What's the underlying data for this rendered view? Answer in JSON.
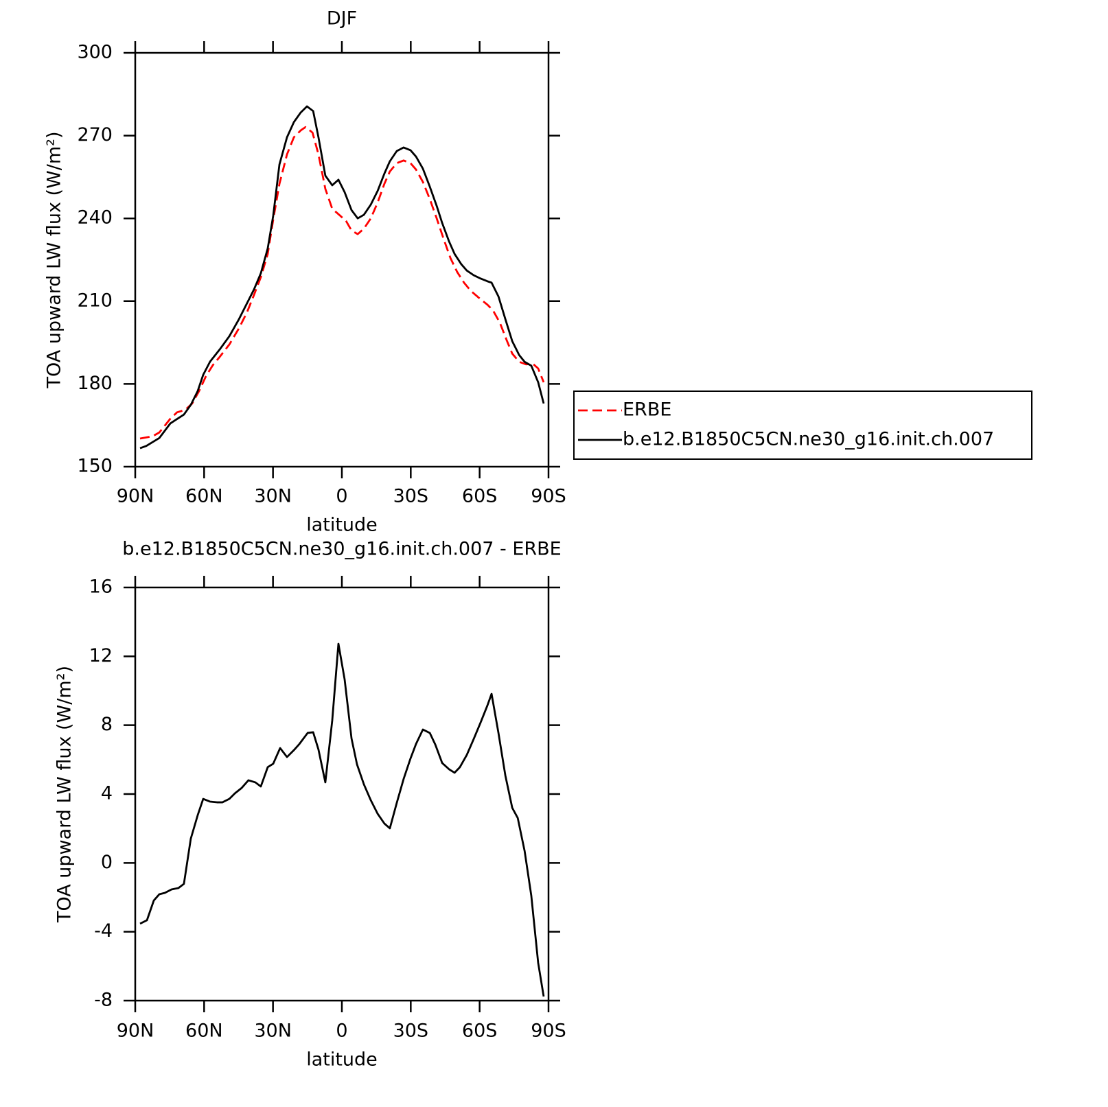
{
  "chart_data": [
    {
      "type": "line",
      "title": "DJF",
      "xlabel": "latitude",
      "ylabel": "TOA upward LW flux (W/m²)",
      "xlim": [
        90,
        -90
      ],
      "xticks": [
        {
          "value": 90,
          "label": "90N"
        },
        {
          "value": 60,
          "label": "60N"
        },
        {
          "value": 30,
          "label": "30N"
        },
        0,
        {
          "value": -30,
          "label": "30S"
        },
        {
          "value": -60,
          "label": "60S"
        },
        {
          "value": -90,
          "label": "90S"
        }
      ],
      "ylim": [
        150,
        300
      ],
      "yticks": [
        150,
        180,
        210,
        240,
        270,
        300
      ],
      "legend": "right",
      "series": [
        {
          "name": "ERBE",
          "color": "#ff0000",
          "line_style": "dashed",
          "x": [
            87.9,
            82.5,
            79.5,
            74.7,
            71.8,
            68.2,
            65.2,
            62.2,
            59.2,
            56.2,
            53.2,
            49,
            44.8,
            41.3,
            38.3,
            35.3,
            32.3,
            29.9,
            27.2,
            23.9,
            20.9,
            17.9,
            15.8,
            12.8,
            10.2,
            7.2,
            4.2,
            1.2,
            -1.8,
            -4.2,
            -6.9,
            -9.6,
            -12.6,
            -15.6,
            -18.5,
            -20.9,
            -23.9,
            -26.9,
            -29.9,
            -32.3,
            -35.3,
            -38.3,
            -41.3,
            -44.3,
            -47.3,
            -50.2,
            -53.2,
            -56.2,
            -60.4,
            -63.4,
            -65.8,
            -68.8,
            -71.8,
            -74.2,
            -77.2,
            -80.2,
            -83.2,
            -85.5,
            -87.9
          ],
          "values": [
            160.2,
            161,
            162.4,
            167.4,
            169.7,
            170.6,
            172.9,
            177.4,
            182.8,
            186.8,
            189.8,
            194.3,
            200.2,
            206,
            212.2,
            218.7,
            227.1,
            239.6,
            252.5,
            263.2,
            269.4,
            271.9,
            273.1,
            271.1,
            263.2,
            250.7,
            243.5,
            241.3,
            239.1,
            235.6,
            234.3,
            236.3,
            240,
            245.8,
            252.5,
            257,
            260,
            261,
            260,
            257.7,
            253.2,
            247,
            240,
            232.6,
            225.6,
            220.6,
            216.7,
            213.7,
            210.7,
            208.7,
            206.7,
            202.2,
            195.8,
            191,
            188,
            187.1,
            187.3,
            185.6,
            180.6
          ]
        },
        {
          "name": "b.e12.B1850C5CN.ne30_g16.init.ch.007",
          "color": "#000000",
          "line_style": "solid",
          "x": [
            87.9,
            85.2,
            79.5,
            74.7,
            68.8,
            65.8,
            62.8,
            60.4,
            57.4,
            53.2,
            49,
            44.8,
            38.3,
            35.3,
            32.3,
            29.9,
            27.2,
            23.9,
            20.9,
            17.9,
            15.2,
            12.5,
            10.2,
            7.2,
            4.2,
            1.5,
            -1.2,
            -4.2,
            -6.9,
            -9.6,
            -12.6,
            -15.6,
            -18.5,
            -20.9,
            -23.9,
            -26.9,
            -29.9,
            -32.3,
            -35.3,
            -38.3,
            -41.3,
            -43.7,
            -46.7,
            -49.1,
            -52,
            -54.4,
            -57.4,
            -60.4,
            -63.4,
            -65.2,
            -68.2,
            -71.2,
            -74.2,
            -77.2,
            -79.6,
            -82.5,
            -85.5,
            -87.9
          ],
          "values": [
            156.7,
            157.5,
            160.4,
            165.7,
            168.9,
            172.4,
            177.4,
            183.3,
            188.1,
            192.5,
            197.3,
            203.5,
            214.2,
            220.1,
            229.1,
            241,
            259.5,
            269.4,
            274.9,
            278.4,
            280.6,
            278.9,
            269.4,
            255.5,
            252,
            254,
            249.5,
            243,
            240,
            241.3,
            245,
            250,
            256.2,
            260.7,
            264.4,
            265.7,
            264.7,
            262.4,
            258,
            251.5,
            244.5,
            238.3,
            231.6,
            227.1,
            223.4,
            221.1,
            219.4,
            218.2,
            217.2,
            216.7,
            211.7,
            203.5,
            195.5,
            190.5,
            188,
            186.6,
            180.6,
            172.9
          ]
        }
      ]
    },
    {
      "type": "line",
      "title": "b.e12.B1850C5CN.ne30_g16.init.ch.007 - ERBE",
      "xlabel": "latitude",
      "ylabel": "TOA upward LW flux (W/m²)",
      "xlim": [
        90,
        -90
      ],
      "xticks": [
        {
          "value": 90,
          "label": "90N"
        },
        {
          "value": 60,
          "label": "60N"
        },
        {
          "value": 30,
          "label": "30N"
        },
        0,
        {
          "value": -30,
          "label": "30S"
        },
        {
          "value": -60,
          "label": "60S"
        },
        {
          "value": -90,
          "label": "90S"
        }
      ],
      "ylim": [
        -8,
        16
      ],
      "yticks": [
        -8,
        -4,
        0,
        4,
        8,
        12,
        16
      ],
      "color": "#000000",
      "x": [
        87.9,
        84.9,
        81.9,
        79.5,
        77.1,
        74.2,
        71.2,
        68.8,
        65.8,
        62.8,
        60.4,
        57.4,
        54.4,
        52,
        49,
        46.6,
        43.6,
        40.7,
        37.7,
        35.3,
        32.3,
        29.9,
        26.9,
        23.9,
        20.9,
        18.5,
        14.9,
        12.5,
        10.2,
        7.2,
        4.2,
        1.5,
        -1.2,
        -4.2,
        -6.6,
        -9.6,
        -12.6,
        -15.6,
        -18.5,
        -20.9,
        -23.9,
        -26.9,
        -29.9,
        -32.3,
        -35.3,
        -38.3,
        -40.7,
        -43.7,
        -46.7,
        -49.1,
        -51.4,
        -54.4,
        -57.4,
        -60.4,
        -63.4,
        -65.2,
        -68.2,
        -71.2,
        -74.2,
        -76.6,
        -79.6,
        -82.5,
        -85.5,
        -87.9
      ],
      "values": [
        -3.53,
        -3.33,
        -2.18,
        -1.82,
        -1.74,
        -1.54,
        -1.46,
        -1.22,
        1.41,
        2.77,
        3.72,
        3.56,
        3.52,
        3.52,
        3.72,
        4.04,
        4.36,
        4.8,
        4.68,
        4.44,
        5.56,
        5.76,
        6.67,
        6.15,
        6.55,
        6.91,
        7.55,
        7.59,
        6.59,
        4.68,
        8.27,
        12.73,
        10.66,
        7.23,
        5.72,
        4.56,
        3.64,
        2.85,
        2.29,
        2.01,
        3.48,
        4.88,
        6.07,
        6.91,
        7.75,
        7.55,
        6.87,
        5.8,
        5.44,
        5.24,
        5.56,
        6.27,
        7.19,
        8.15,
        9.15,
        9.82,
        7.55,
        5.08,
        3.2,
        2.61,
        0.69,
        -1.9,
        -5.81,
        -7.76
      ]
    }
  ]
}
